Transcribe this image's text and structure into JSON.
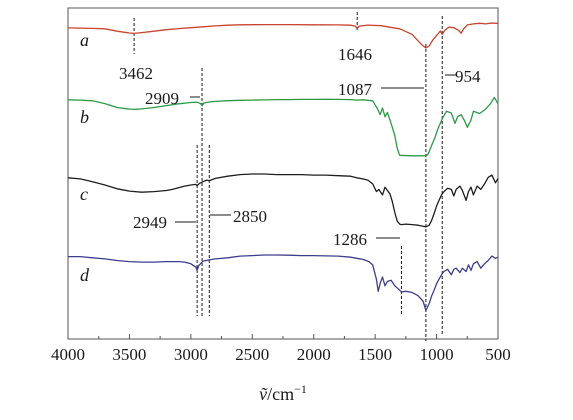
{
  "chart_data": {
    "type": "line",
    "title": "",
    "xlabel": "ṽ/cm⁻¹",
    "xlabel_symbol": "ṽ",
    "xlabel_unit": "/cm",
    "xlabel_exp": "−1",
    "ylabel": "",
    "xlim": [
      4000,
      500
    ],
    "x_reversed": true,
    "y_ticks_shown": false,
    "grid": false,
    "xticks": [
      "4000",
      "3500",
      "3000",
      "2500",
      "2000",
      "1500",
      "1000",
      "500"
    ],
    "series": [
      {
        "name": "a",
        "color": "#c8442e",
        "points": [
          [
            4000,
            0.72
          ],
          [
            3900,
            0.74
          ],
          [
            3800,
            0.76
          ],
          [
            3700,
            0.8
          ],
          [
            3600,
            1.02
          ],
          [
            3500,
            1.18
          ],
          [
            3462,
            1.22
          ],
          [
            3400,
            1.15
          ],
          [
            3300,
            1.02
          ],
          [
            3200,
            0.88
          ],
          [
            3100,
            0.78
          ],
          [
            3000,
            0.7
          ],
          [
            2900,
            0.62
          ],
          [
            2800,
            0.54
          ],
          [
            2700,
            0.47
          ],
          [
            2600,
            0.44
          ],
          [
            2400,
            0.42
          ],
          [
            2200,
            0.42
          ],
          [
            2000,
            0.44
          ],
          [
            1800,
            0.45
          ],
          [
            1700,
            0.47
          ],
          [
            1660,
            0.55
          ],
          [
            1646,
            0.78
          ],
          [
            1630,
            0.55
          ],
          [
            1560,
            0.46
          ],
          [
            1450,
            0.52
          ],
          [
            1400,
            0.62
          ],
          [
            1300,
            0.8
          ],
          [
            1200,
            1.3
          ],
          [
            1150,
            1.9
          ],
          [
            1110,
            2.35
          ],
          [
            1087,
            2.55
          ],
          [
            1060,
            2.35
          ],
          [
            1030,
            1.8
          ],
          [
            1000,
            1.4
          ],
          [
            970,
            1.0
          ],
          [
            954,
            1.3
          ],
          [
            935,
            0.95
          ],
          [
            900,
            0.65
          ],
          [
            860,
            0.7
          ],
          [
            820,
            0.95
          ],
          [
            800,
            1.2
          ],
          [
            780,
            0.8
          ],
          [
            750,
            0.45
          ],
          [
            700,
            0.35
          ],
          [
            650,
            0.3
          ],
          [
            600,
            0.35
          ],
          [
            560,
            0.28
          ],
          [
            500,
            0.3
          ]
        ]
      },
      {
        "name": "b",
        "color": "#2e9a47",
        "points": [
          [
            4000,
            0.25
          ],
          [
            3900,
            0.28
          ],
          [
            3800,
            0.35
          ],
          [
            3700,
            0.6
          ],
          [
            3600,
            0.95
          ],
          [
            3500,
            1.1
          ],
          [
            3450,
            1.12
          ],
          [
            3400,
            1.08
          ],
          [
            3300,
            0.95
          ],
          [
            3200,
            0.78
          ],
          [
            3100,
            0.62
          ],
          [
            3000,
            0.5
          ],
          [
            2950,
            0.47
          ],
          [
            2920,
            0.6
          ],
          [
            2909,
            0.8
          ],
          [
            2895,
            0.55
          ],
          [
            2850,
            0.45
          ],
          [
            2800,
            0.4
          ],
          [
            2700,
            0.34
          ],
          [
            2600,
            0.3
          ],
          [
            2500,
            0.28
          ],
          [
            2400,
            0.26
          ],
          [
            2300,
            0.24
          ],
          [
            2200,
            0.24
          ],
          [
            2100,
            0.22
          ],
          [
            2000,
            0.22
          ],
          [
            1900,
            0.21
          ],
          [
            1800,
            0.22
          ],
          [
            1700,
            0.24
          ],
          [
            1650,
            0.28
          ],
          [
            1600,
            0.25
          ],
          [
            1520,
            0.35
          ],
          [
            1480,
            1.1
          ],
          [
            1460,
            1.6
          ],
          [
            1440,
            1.0
          ],
          [
            1420,
            1.8
          ],
          [
            1400,
            1.4
          ],
          [
            1370,
            2.4
          ],
          [
            1340,
            3.5
          ],
          [
            1320,
            4.7
          ],
          [
            1300,
            5.3
          ],
          [
            1200,
            5.35
          ],
          [
            1100,
            5.35
          ],
          [
            1087,
            5.35
          ],
          [
            1070,
            5.2
          ],
          [
            1040,
            4.4
          ],
          [
            1010,
            3.6
          ],
          [
            990,
            2.9
          ],
          [
            970,
            2.4
          ],
          [
            950,
            1.9
          ],
          [
            920,
            1.3
          ],
          [
            880,
            1.45
          ],
          [
            850,
            2.4
          ],
          [
            830,
            1.8
          ],
          [
            800,
            1.6
          ],
          [
            770,
            2.2
          ],
          [
            750,
            2.75
          ],
          [
            720,
            2.1
          ],
          [
            700,
            1.3
          ],
          [
            650,
            1.5
          ],
          [
            600,
            1.1
          ],
          [
            560,
            0.6
          ],
          [
            530,
            0.05
          ],
          [
            500,
            0.6
          ]
        ]
      },
      {
        "name": "c",
        "color": "#1e1e1e",
        "points": [
          [
            4000,
            0.35
          ],
          [
            3900,
            0.45
          ],
          [
            3800,
            0.7
          ],
          [
            3700,
            1.0
          ],
          [
            3600,
            1.35
          ],
          [
            3500,
            1.55
          ],
          [
            3400,
            1.65
          ],
          [
            3300,
            1.6
          ],
          [
            3200,
            1.5
          ],
          [
            3150,
            1.4
          ],
          [
            3100,
            1.25
          ],
          [
            3050,
            1.1
          ],
          [
            3000,
            1.0
          ],
          [
            2960,
            0.95
          ],
          [
            2949,
            1.05
          ],
          [
            2930,
            0.85
          ],
          [
            2900,
            0.7
          ],
          [
            2870,
            0.55
          ],
          [
            2850,
            0.6
          ],
          [
            2800,
            0.4
          ],
          [
            2700,
            0.2
          ],
          [
            2600,
            0.05
          ],
          [
            2500,
            0.0
          ],
          [
            2400,
            0.0
          ],
          [
            2300,
            0.05
          ],
          [
            2200,
            0.05
          ],
          [
            2100,
            0.05
          ],
          [
            2000,
            0.1
          ],
          [
            1900,
            0.1
          ],
          [
            1800,
            0.15
          ],
          [
            1700,
            0.2
          ],
          [
            1650,
            0.35
          ],
          [
            1600,
            0.45
          ],
          [
            1560,
            0.55
          ],
          [
            1520,
            0.9
          ],
          [
            1490,
            1.6
          ],
          [
            1470,
            1.4
          ],
          [
            1440,
            1.9
          ],
          [
            1420,
            1.2
          ],
          [
            1400,
            1.5
          ],
          [
            1380,
            1.8
          ],
          [
            1360,
            2.5
          ],
          [
            1340,
            3.5
          ],
          [
            1320,
            4.3
          ],
          [
            1300,
            4.55
          ],
          [
            1286,
            4.6
          ],
          [
            1250,
            4.55
          ],
          [
            1200,
            4.6
          ],
          [
            1150,
            4.65
          ],
          [
            1110,
            4.75
          ],
          [
            1087,
            4.8
          ],
          [
            1060,
            4.65
          ],
          [
            1040,
            4.2
          ],
          [
            1020,
            3.6
          ],
          [
            1000,
            2.9
          ],
          [
            980,
            2.4
          ],
          [
            960,
            1.9
          ],
          [
            940,
            1.6
          ],
          [
            910,
            1.3
          ],
          [
            880,
            1.4
          ],
          [
            860,
            2.0
          ],
          [
            840,
            1.4
          ],
          [
            810,
            1.1
          ],
          [
            790,
            1.5
          ],
          [
            760,
            2.4
          ],
          [
            740,
            1.6
          ],
          [
            720,
            1.2
          ],
          [
            700,
            1.9
          ],
          [
            670,
            1.1
          ],
          [
            640,
            1.4
          ],
          [
            610,
            0.9
          ],
          [
            580,
            0.3
          ],
          [
            550,
            0.1
          ],
          [
            520,
            0.8
          ],
          [
            500,
            0.4
          ]
        ]
      },
      {
        "name": "d",
        "color": "#3d3e8e",
        "points": [
          [
            4000,
            0.15
          ],
          [
            3900,
            0.15
          ],
          [
            3800,
            0.25
          ],
          [
            3700,
            0.35
          ],
          [
            3600,
            0.5
          ],
          [
            3500,
            0.6
          ],
          [
            3400,
            0.65
          ],
          [
            3300,
            0.65
          ],
          [
            3200,
            0.6
          ],
          [
            3100,
            0.6
          ],
          [
            3050,
            0.65
          ],
          [
            3000,
            0.8
          ],
          [
            2960,
            1.1
          ],
          [
            2949,
            1.4
          ],
          [
            2935,
            0.95
          ],
          [
            2900,
            0.55
          ],
          [
            2850,
            0.45
          ],
          [
            2800,
            0.35
          ],
          [
            2700,
            0.25
          ],
          [
            2600,
            0.1
          ],
          [
            2500,
            0.05
          ],
          [
            2400,
            0.0
          ],
          [
            2300,
            0.0
          ],
          [
            2200,
            0.02
          ],
          [
            2100,
            0.05
          ],
          [
            2000,
            0.05
          ],
          [
            1900,
            0.08
          ],
          [
            1800,
            0.1
          ],
          [
            1700,
            0.2
          ],
          [
            1650,
            0.3
          ],
          [
            1600,
            0.4
          ],
          [
            1550,
            0.6
          ],
          [
            1520,
            0.9
          ],
          [
            1490,
            2.2
          ],
          [
            1475,
            3.3
          ],
          [
            1460,
            2.6
          ],
          [
            1440,
            2.0
          ],
          [
            1420,
            2.8
          ],
          [
            1400,
            2.4
          ],
          [
            1370,
            2.3
          ],
          [
            1340,
            2.8
          ],
          [
            1300,
            3.2
          ],
          [
            1286,
            3.35
          ],
          [
            1250,
            3.3
          ],
          [
            1200,
            3.4
          ],
          [
            1150,
            3.7
          ],
          [
            1110,
            4.2
          ],
          [
            1087,
            5.05
          ],
          [
            1060,
            4.4
          ],
          [
            1040,
            3.7
          ],
          [
            1020,
            3.2
          ],
          [
            1000,
            2.6
          ],
          [
            980,
            2.2
          ],
          [
            960,
            1.8
          ],
          [
            940,
            1.5
          ],
          [
            910,
            1.3
          ],
          [
            880,
            1.8
          ],
          [
            860,
            1.3
          ],
          [
            840,
            1.2
          ],
          [
            810,
            1.6
          ],
          [
            790,
            1.2
          ],
          [
            760,
            1.5
          ],
          [
            740,
            0.9
          ],
          [
            720,
            1.4
          ],
          [
            700,
            0.8
          ],
          [
            670,
            0.6
          ],
          [
            640,
            1.2
          ],
          [
            610,
            0.8
          ],
          [
            580,
            0.5
          ],
          [
            550,
            0.1
          ],
          [
            520,
            0.3
          ],
          [
            500,
            0.2
          ]
        ]
      }
    ],
    "reference_lines": [
      {
        "x": 3462,
        "label": "3462"
      },
      {
        "x": 1646,
        "label": "1646"
      },
      {
        "x": 1087,
        "label": "1087"
      },
      {
        "x": 954,
        "label": "954"
      },
      {
        "x": 2909,
        "label": "2909"
      },
      {
        "x": 2949,
        "label": "2949"
      },
      {
        "x": 2850,
        "label": "2850"
      },
      {
        "x": 1286,
        "label": "1286"
      }
    ]
  }
}
